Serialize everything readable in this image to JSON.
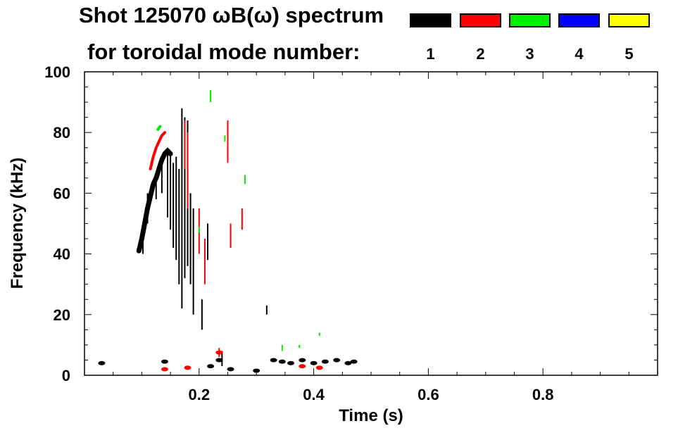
{
  "chart_data": {
    "type": "scatter",
    "title": "Shot 125070 ωB(ω) spectrum",
    "legend_title": "for toroidal mode number:",
    "legend": [
      {
        "label": "1",
        "color": "#000000"
      },
      {
        "label": "2",
        "color": "#ff0000"
      },
      {
        "label": "3",
        "color": "#00ee00"
      },
      {
        "label": "4",
        "color": "#0000ff"
      },
      {
        "label": "5",
        "color": "#ffff00"
      }
    ],
    "xlabel": "Time (s)",
    "ylabel": "Frequency (kHz)",
    "xlim": [
      0.0,
      1.0
    ],
    "ylim": [
      0,
      100
    ],
    "xticks": [
      {
        "value": 0.2,
        "label": "0.2"
      },
      {
        "value": 0.4,
        "label": "0.4"
      },
      {
        "value": 0.6,
        "label": "0.6"
      },
      {
        "value": 0.8,
        "label": "0.8"
      }
    ],
    "yticks": [
      {
        "value": 0,
        "label": "0"
      },
      {
        "value": 20,
        "label": "20"
      },
      {
        "value": 40,
        "label": "40"
      },
      {
        "value": 60,
        "label": "60"
      },
      {
        "value": 80,
        "label": "80"
      },
      {
        "value": 100,
        "label": "100"
      }
    ],
    "series": [
      {
        "name": "n=1",
        "color": "#000000",
        "chirp_track": [
          [
            0.095,
            41
          ],
          [
            0.1,
            45
          ],
          [
            0.105,
            50
          ],
          [
            0.11,
            55
          ],
          [
            0.115,
            59
          ],
          [
            0.12,
            63
          ],
          [
            0.125,
            65
          ],
          [
            0.13,
            68
          ],
          [
            0.135,
            71
          ],
          [
            0.14,
            73
          ],
          [
            0.145,
            74
          ],
          [
            0.15,
            73
          ]
        ],
        "streaks": [
          [
            0.102,
            40,
            47
          ],
          [
            0.11,
            50,
            60
          ],
          [
            0.125,
            58,
            67
          ],
          [
            0.135,
            60,
            72
          ],
          [
            0.145,
            52,
            75
          ],
          [
            0.15,
            48,
            73
          ],
          [
            0.155,
            42,
            70
          ],
          [
            0.16,
            38,
            72
          ],
          [
            0.165,
            30,
            68
          ],
          [
            0.17,
            22,
            88
          ],
          [
            0.175,
            32,
            85
          ],
          [
            0.18,
            36,
            84
          ],
          [
            0.185,
            30,
            60
          ],
          [
            0.19,
            20,
            55
          ],
          [
            0.205,
            15,
            25
          ],
          [
            0.215,
            38,
            50
          ],
          [
            0.24,
            3,
            8
          ],
          [
            0.318,
            20,
            23
          ]
        ],
        "low_band": [
          [
            0.03,
            4.0
          ],
          [
            0.14,
            4.5
          ],
          [
            0.22,
            3.0
          ],
          [
            0.235,
            5.0
          ],
          [
            0.255,
            2.0
          ],
          [
            0.3,
            1.5
          ],
          [
            0.33,
            5.0
          ],
          [
            0.345,
            4.5
          ],
          [
            0.36,
            4.0
          ],
          [
            0.38,
            5.0
          ],
          [
            0.4,
            4.0
          ],
          [
            0.42,
            4.5
          ],
          [
            0.44,
            5.0
          ],
          [
            0.46,
            4.0
          ],
          [
            0.47,
            4.5
          ]
        ]
      },
      {
        "name": "n=2",
        "color": "#ff0000",
        "chirp_track": [
          [
            0.115,
            68
          ],
          [
            0.12,
            72
          ],
          [
            0.125,
            75
          ],
          [
            0.13,
            77
          ],
          [
            0.135,
            79
          ],
          [
            0.14,
            80
          ]
        ],
        "streaks": [
          [
            0.175,
            68,
            84
          ],
          [
            0.18,
            55,
            80
          ],
          [
            0.2,
            40,
            55
          ],
          [
            0.21,
            30,
            45
          ],
          [
            0.25,
            70,
            84
          ],
          [
            0.255,
            42,
            50
          ],
          [
            0.275,
            48,
            55
          ],
          [
            0.235,
            6,
            9
          ]
        ],
        "low_band": [
          [
            0.14,
            2.0
          ],
          [
            0.18,
            2.5
          ],
          [
            0.235,
            7.5
          ],
          [
            0.38,
            3.0
          ],
          [
            0.41,
            2.5
          ]
        ]
      },
      {
        "name": "n=3",
        "color": "#00ee00",
        "chirp_track": [
          [
            0.128,
            81
          ],
          [
            0.132,
            82
          ]
        ],
        "streaks": [
          [
            0.22,
            90,
            94
          ],
          [
            0.245,
            77,
            79
          ],
          [
            0.28,
            63,
            66
          ],
          [
            0.2,
            47,
            49
          ],
          [
            0.345,
            8,
            10
          ],
          [
            0.375,
            9,
            10
          ],
          [
            0.41,
            13,
            14
          ]
        ],
        "low_band": []
      },
      {
        "name": "n=4",
        "color": "#0000ff",
        "chirp_track": [],
        "streaks": [],
        "low_band": []
      },
      {
        "name": "n=5",
        "color": "#ffff00",
        "chirp_track": [],
        "streaks": [],
        "low_band": []
      }
    ]
  }
}
